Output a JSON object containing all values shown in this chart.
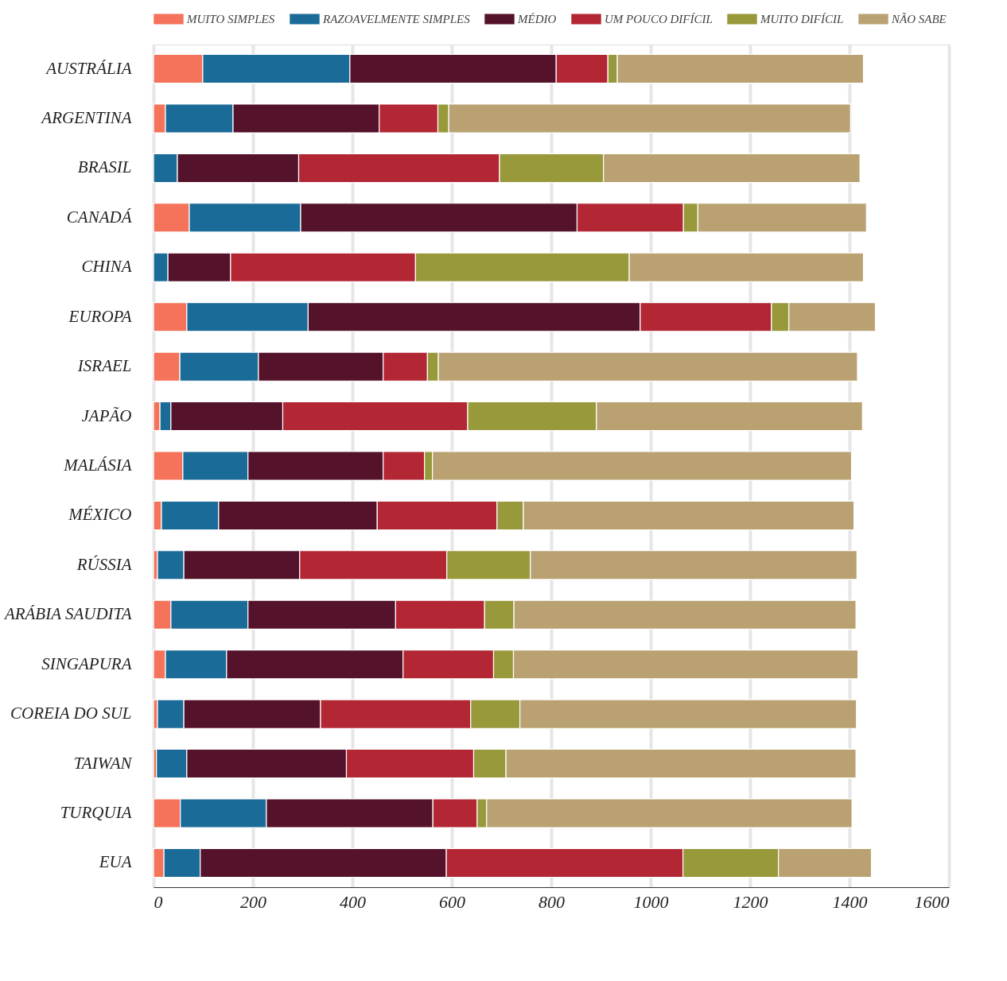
{
  "chart_data": {
    "type": "bar",
    "orientation": "horizontal",
    "stacked": true,
    "legend": "top",
    "grid": "x",
    "categories": [
      "AUSTRÁLIA",
      "ARGENTINA",
      "BRASIL",
      "CANADÁ",
      "CHINA",
      "EUROPA",
      "ISRAEL",
      "JAPÃO",
      "MALÁSIA",
      "MÉXICO",
      "RÚSSIA",
      "ARÁBIA SAUDITA",
      "SINGAPURA",
      "COREIA DO SUL",
      "TAIWAN",
      "TURQUIA",
      "EUA"
    ],
    "xlim": [
      0,
      1600
    ],
    "xticks": [
      0,
      200,
      400,
      600,
      800,
      1000,
      1200,
      1400,
      1600
    ],
    "series": [
      {
        "name": "MUITO SIMPLES",
        "color": "#f4735a",
        "values": [
          99,
          24,
          0,
          72,
          0,
          67,
          53,
          13,
          59,
          16,
          8,
          35,
          24,
          8,
          6,
          54,
          21
        ]
      },
      {
        "name": "RAZOAVELMENTE SIMPLES",
        "color": "#1a6b98",
        "values": [
          296,
          136,
          48,
          224,
          29,
          244,
          158,
          22,
          131,
          115,
          53,
          155,
          123,
          53,
          61,
          173,
          73
        ]
      },
      {
        "name": "MÉDIO",
        "color": "#54122b",
        "values": [
          415,
          294,
          244,
          556,
          126,
          668,
          251,
          225,
          272,
          319,
          233,
          297,
          355,
          275,
          321,
          335,
          495
        ]
      },
      {
        "name": "UM POUCO DIFÍCIL",
        "color": "#b32634",
        "values": [
          104,
          118,
          404,
          214,
          372,
          264,
          89,
          372,
          83,
          241,
          296,
          179,
          182,
          302,
          256,
          89,
          476
        ]
      },
      {
        "name": "MUITO DIFÍCIL",
        "color": "#98993b",
        "values": [
          19,
          22,
          209,
          29,
          430,
          35,
          22,
          259,
          16,
          53,
          168,
          59,
          40,
          99,
          65,
          19,
          192
        ]
      },
      {
        "name": "NÃO SABE",
        "color": "#b9a172",
        "values": [
          495,
          808,
          516,
          339,
          471,
          174,
          843,
          535,
          843,
          665,
          657,
          688,
          693,
          677,
          704,
          735,
          187
        ]
      }
    ]
  }
}
